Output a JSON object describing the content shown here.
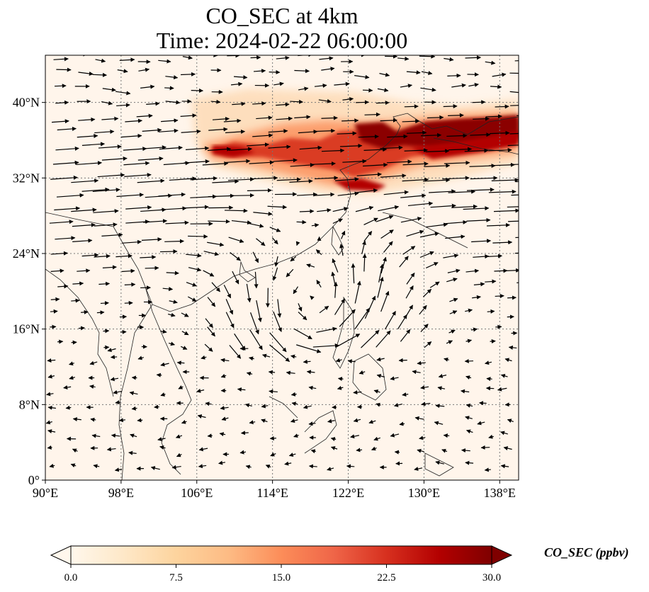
{
  "title": {
    "line1": "CO_SEC at 4km",
    "line2": "Time: 2024-02-22 06:00:00"
  },
  "map": {
    "lon_range": [
      90,
      140
    ],
    "lat_range": [
      0,
      45
    ],
    "lon_ticks": [
      {
        "value": 90,
        "label": "90°E"
      },
      {
        "value": 98,
        "label": "98°E"
      },
      {
        "value": 106,
        "label": "106°E"
      },
      {
        "value": 114,
        "label": "114°E"
      },
      {
        "value": 122,
        "label": "122°E"
      },
      {
        "value": 130,
        "label": "130°E"
      },
      {
        "value": 138,
        "label": "138°E"
      }
    ],
    "lat_ticks": [
      {
        "value": 0,
        "label": "0°"
      },
      {
        "value": 8,
        "label": "8°N"
      },
      {
        "value": 16,
        "label": "16°N"
      },
      {
        "value": 24,
        "label": "24°N"
      },
      {
        "value": 32,
        "label": "32°N"
      },
      {
        "value": 40,
        "label": "40°N"
      }
    ],
    "gridlines": true,
    "background_color": "#fff5eb",
    "wind_vectors": "black arrows; strong westerlies north of ~20°N, cyclonic circulation near 118°E 18°N"
  },
  "colorbar": {
    "label": "CO_SEC (ppbv)",
    "min": 0,
    "max": 30,
    "extend": "both",
    "colormap": "OrRd",
    "ticks": [
      "0.0",
      "7.5",
      "15.0",
      "22.5",
      "30.0"
    ],
    "colors": [
      "#fff7ec",
      "#fee8c8",
      "#fdd49e",
      "#fdbb84",
      "#fc8d59",
      "#ef6548",
      "#d7301f",
      "#b30000",
      "#7f0000"
    ]
  }
}
